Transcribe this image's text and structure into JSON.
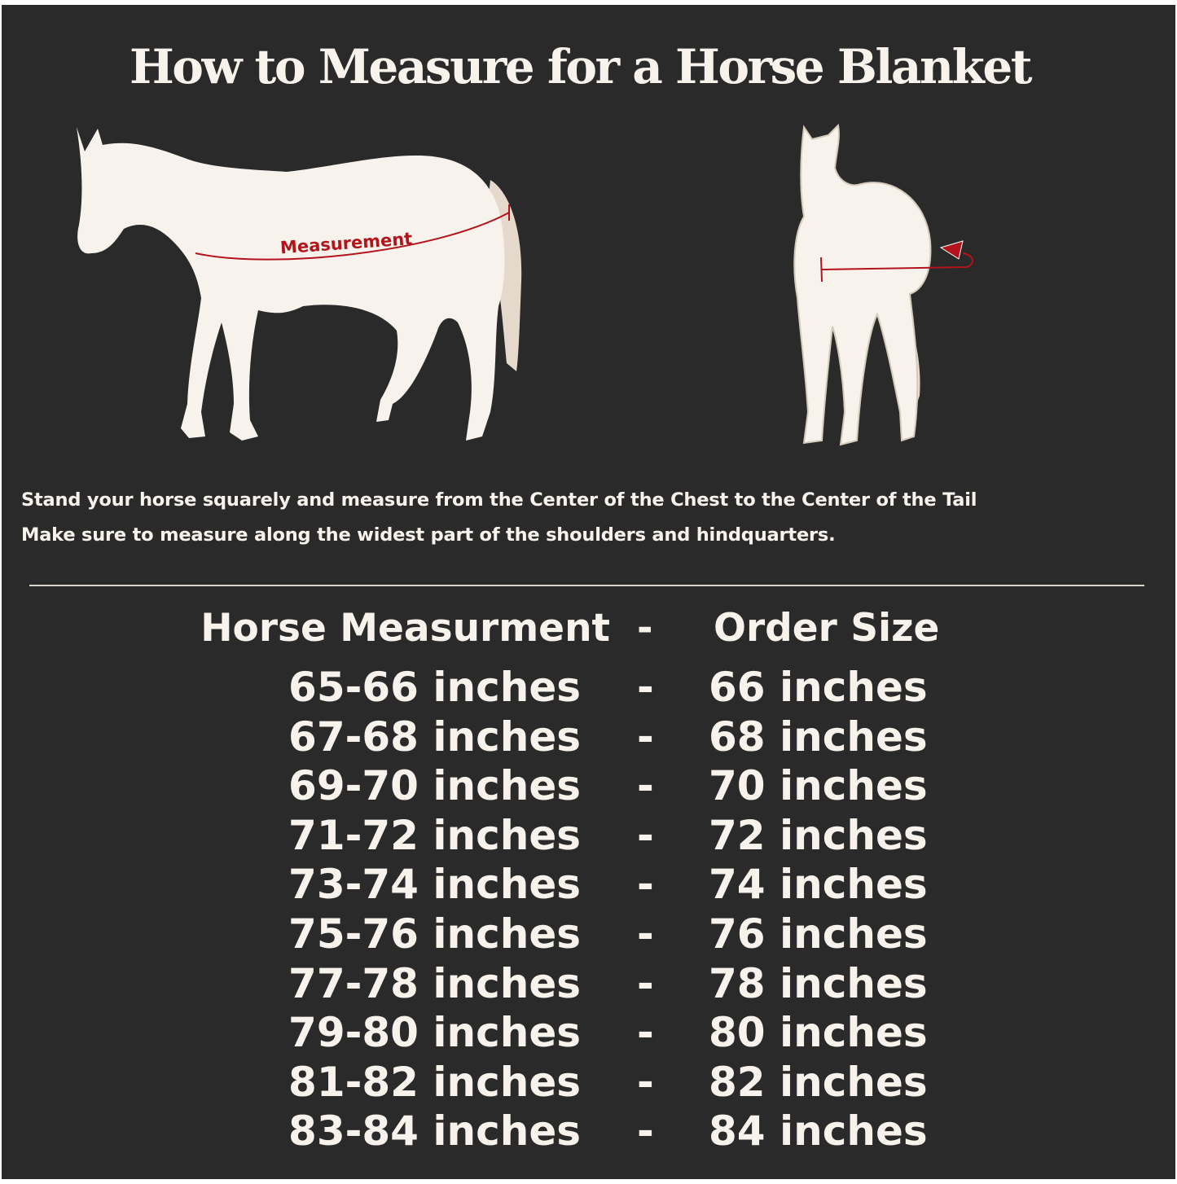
{
  "title": "How to Measure for a Horse Blanket",
  "illustrations": {
    "side_view_label": "Measurement",
    "measure_color": "#b3141b",
    "horse_color": "#f7f3ec",
    "tail_color": "#e4d9cb"
  },
  "instructions": [
    "Stand your horse squarely and measure from the Center of the Chest to the Center of the Tail",
    "Make sure to measure along the widest part of the shoulders and hindquarters."
  ],
  "table": {
    "headers": {
      "measurement": "Horse Measurment",
      "separator": "-",
      "size": "Order Size"
    },
    "rows": [
      {
        "measurement": "65-66 inches",
        "separator": "-",
        "size": "66 inches"
      },
      {
        "measurement": "67-68 inches",
        "separator": "-",
        "size": "68 inches"
      },
      {
        "measurement": "69-70 inches",
        "separator": "-",
        "size": "70 inches"
      },
      {
        "measurement": "71-72 inches",
        "separator": "-",
        "size": "72 inches"
      },
      {
        "measurement": "73-74 inches",
        "separator": "-",
        "size": "74 inches"
      },
      {
        "measurement": "75-76 inches",
        "separator": "-",
        "size": "76 inches"
      },
      {
        "measurement": "77-78 inches",
        "separator": "-",
        "size": "78 inches"
      },
      {
        "measurement": "79-80 inches",
        "separator": "-",
        "size": "80 inches"
      },
      {
        "measurement": "81-82 inches",
        "separator": "-",
        "size": "82 inches"
      },
      {
        "measurement": "83-84 inches",
        "separator": "-",
        "size": "84 inches"
      }
    ]
  }
}
